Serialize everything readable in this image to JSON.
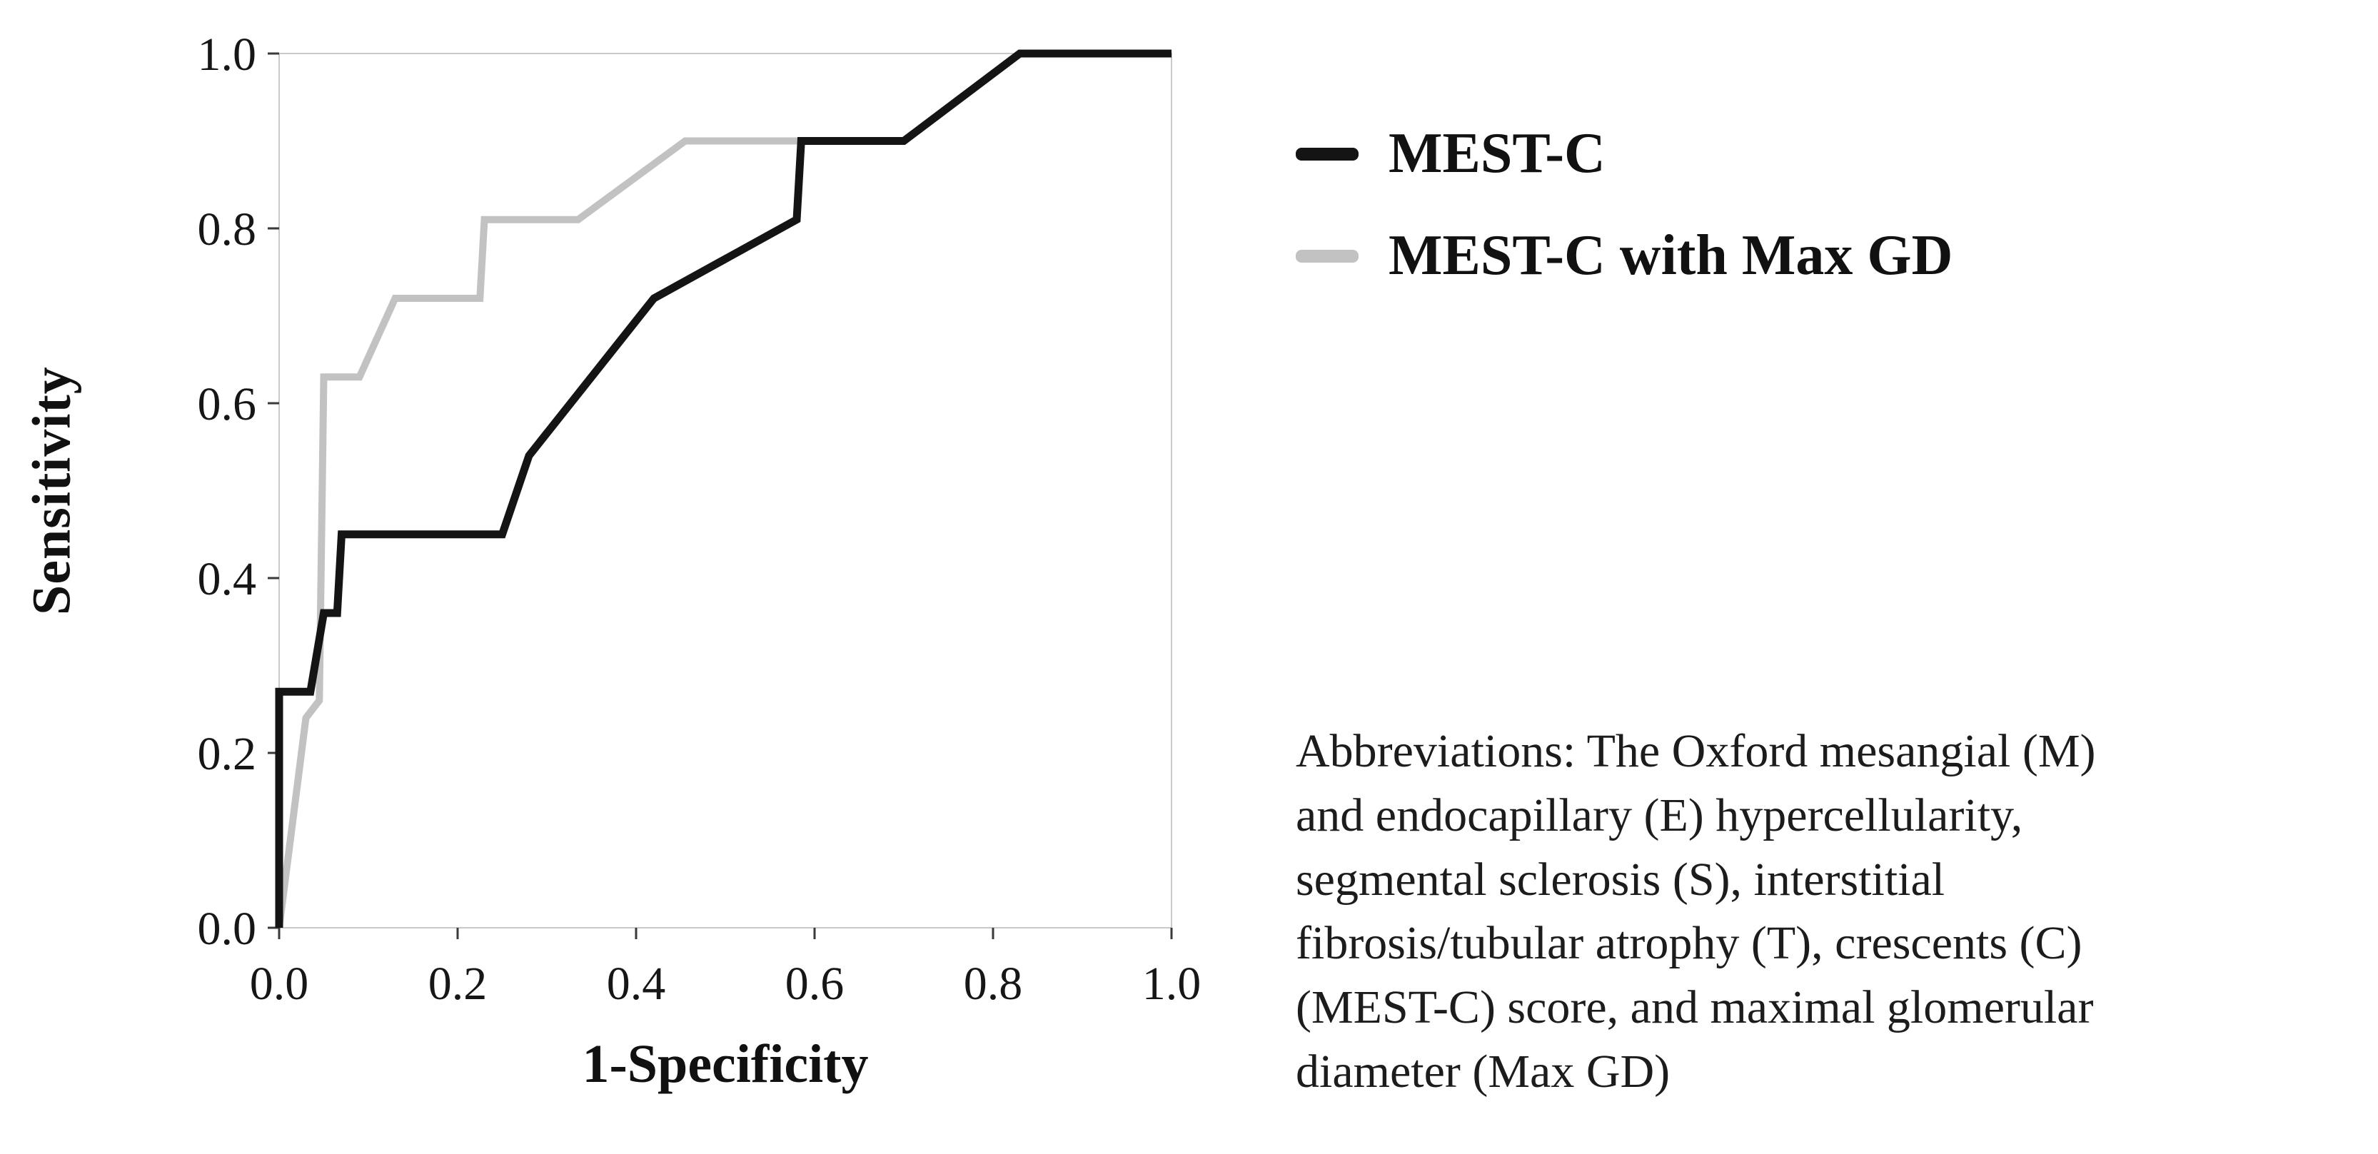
{
  "figure": {
    "background": "#ffffff"
  },
  "chart_data": {
    "type": "line",
    "subtype": "roc-curve-step",
    "title": "",
    "xlabel": "1-Specificity",
    "ylabel": "Sensitivity",
    "xlim": [
      0,
      1
    ],
    "ylim": [
      0,
      1
    ],
    "xticks": [
      "0.0",
      "0.2",
      "0.4",
      "0.6",
      "0.8",
      "1.0"
    ],
    "yticks": [
      "0.0",
      "0.2",
      "0.4",
      "0.6",
      "0.8",
      "1.0"
    ],
    "grid": false,
    "frame_color": "#c9c9c9",
    "tick_color": "#3a3a3a",
    "legend_position": "right",
    "series": [
      {
        "name": "MEST-C",
        "color": "#141414",
        "stroke_width": 11,
        "points": [
          [
            0,
            0
          ],
          [
            0,
            0.27
          ],
          [
            0.035,
            0.27
          ],
          [
            0.05,
            0.36
          ],
          [
            0.065,
            0.36
          ],
          [
            0.07,
            0.45
          ],
          [
            0.25,
            0.45
          ],
          [
            0.28,
            0.54
          ],
          [
            0.42,
            0.72
          ],
          [
            0.58,
            0.81
          ],
          [
            0.585,
            0.9
          ],
          [
            0.7,
            0.9
          ],
          [
            0.83,
            1.0
          ],
          [
            1.0,
            1.0
          ]
        ]
      },
      {
        "name": "MEST-C with Max GD",
        "color": "#c2c2c2",
        "stroke_width": 10,
        "points": [
          [
            0,
            0
          ],
          [
            0.03,
            0.24
          ],
          [
            0.045,
            0.26
          ],
          [
            0.05,
            0.63
          ],
          [
            0.09,
            0.63
          ],
          [
            0.13,
            0.72
          ],
          [
            0.225,
            0.72
          ],
          [
            0.23,
            0.81
          ],
          [
            0.335,
            0.81
          ],
          [
            0.455,
            0.9
          ],
          [
            0.62,
            0.9
          ],
          [
            0.7,
            0.9
          ],
          [
            0.83,
            1.0
          ],
          [
            1.0,
            1.0
          ]
        ]
      }
    ]
  },
  "abbreviations": {
    "lines": [
      "Abbreviations: The Oxford mesangial (M)",
      "and endocapillary (E) hypercellularity,",
      "segmental sclerosis (S), interstitial",
      "fibrosis/tubular atrophy (T), crescents (C)",
      "(MEST-C) score, and maximal glomerular",
      "diameter (Max GD)"
    ]
  }
}
